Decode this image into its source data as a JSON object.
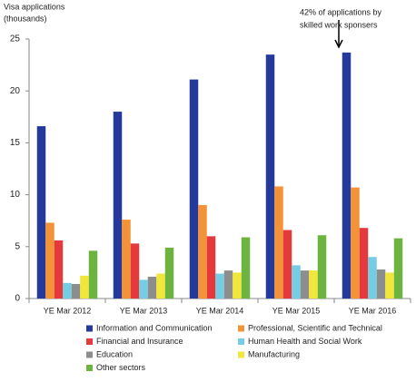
{
  "chart_data": {
    "type": "bar",
    "ylabel": [
      "Visa applications",
      "(thousands)"
    ],
    "annotation": [
      "42% of applications  by",
      "skilled work sponsers"
    ],
    "categories": [
      "YE Mar 2012",
      "YE Mar 2013",
      "YE Mar 2014",
      "YE Mar 2015",
      "YE Mar 2016"
    ],
    "series": [
      {
        "name": "Information and Communication",
        "color": "#25399b",
        "values": [
          16.6,
          18.0,
          21.1,
          23.5,
          23.7
        ]
      },
      {
        "name": "Professional, Scientific and Technical",
        "color": "#f39237",
        "values": [
          7.3,
          7.6,
          9.0,
          10.8,
          10.7
        ]
      },
      {
        "name": "Financial and Insurance",
        "color": "#e53a3c",
        "values": [
          5.6,
          5.3,
          6.0,
          6.6,
          6.8
        ]
      },
      {
        "name": "Human Health and Social Work",
        "color": "#74cde2",
        "values": [
          1.5,
          1.8,
          2.4,
          3.2,
          4.0
        ]
      },
      {
        "name": "Education",
        "color": "#8d8d8d",
        "values": [
          1.4,
          2.1,
          2.7,
          2.7,
          2.8
        ]
      },
      {
        "name": "Manufacturing",
        "color": "#f1e63a",
        "values": [
          2.2,
          2.4,
          2.5,
          2.7,
          2.5
        ]
      },
      {
        "name": "Other sectors",
        "color": "#6db33f",
        "values": [
          4.6,
          4.9,
          5.9,
          6.1,
          5.8
        ]
      }
    ],
    "ylim": [
      0,
      25
    ],
    "yticks": [
      0,
      5,
      10,
      15,
      20,
      25
    ],
    "legend": "bottom"
  }
}
